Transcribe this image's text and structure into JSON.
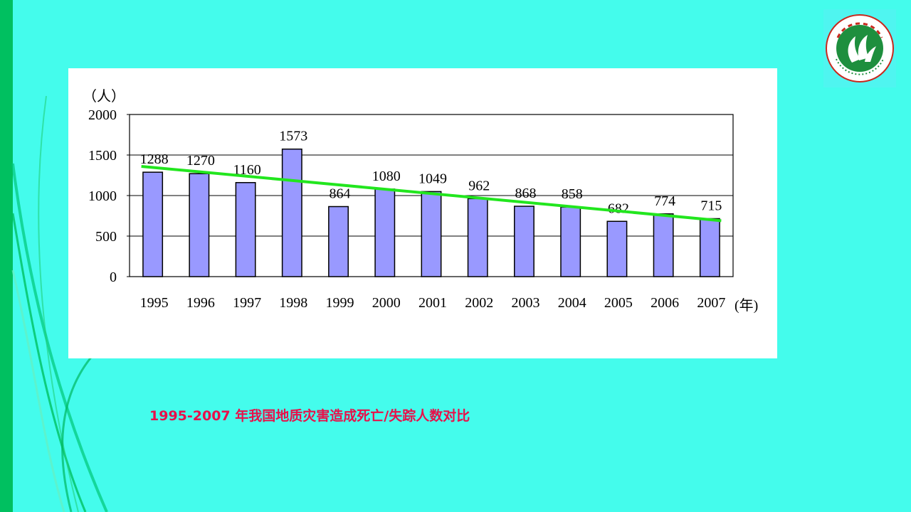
{
  "colors": {
    "background": "#44FCEC",
    "left_stripe": "#00C060",
    "bar_fill": "#9999FF",
    "trend_line": "#22E61E",
    "caption": "#E8104A",
    "logo_green": "#1E8F3E",
    "logo_red": "#C8281E"
  },
  "logo": {
    "icon": "university-seal-icon"
  },
  "caption": "1995-2007 年我国地质灾害造成死亡/失踪人数对比",
  "chart_data": {
    "type": "bar",
    "categories": [
      "1995",
      "1996",
      "1997",
      "1998",
      "1999",
      "2000",
      "2001",
      "2002",
      "2003",
      "2004",
      "2005",
      "2006",
      "2007"
    ],
    "values": [
      1288,
      1270,
      1160,
      1573,
      864,
      1080,
      1049,
      962,
      868,
      858,
      682,
      774,
      715
    ],
    "trend_line": {
      "start": 1360,
      "end": 690
    },
    "y_unit_label": "（人）",
    "x_unit_label": "(年)",
    "ylim": [
      0,
      2000
    ],
    "yticks": [
      "0",
      "500",
      "1000",
      "1500",
      "2000"
    ],
    "grid": true,
    "title": "",
    "xlabel": "",
    "ylabel": ""
  }
}
